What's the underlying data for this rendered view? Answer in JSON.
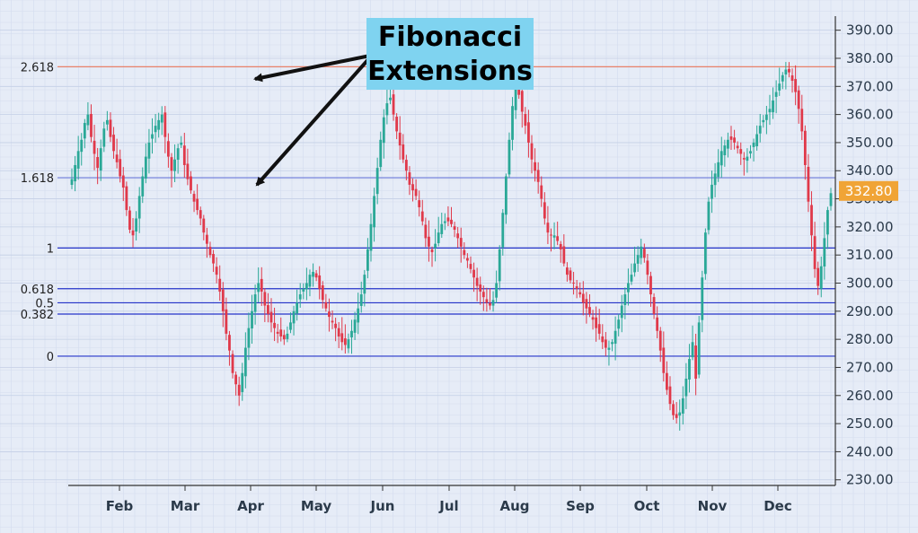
{
  "annotation": {
    "line1": "Fibonacci",
    "line2": "Extensions"
  },
  "chart_data": {
    "type": "candlestick",
    "title": "",
    "xlabel": "",
    "ylabel": "",
    "y_ticks": [
      230,
      240,
      250,
      260,
      270,
      280,
      290,
      300,
      310,
      320,
      330,
      340,
      350,
      360,
      370,
      380,
      390
    ],
    "ylim": [
      228,
      395
    ],
    "x_ticks": [
      "Feb",
      "Mar",
      "Apr",
      "May",
      "Jun",
      "Jul",
      "Aug",
      "Sep",
      "Oct",
      "Nov",
      "Dec"
    ],
    "last_price": "332.80",
    "grid": true,
    "fib_levels": [
      {
        "label": "2.618",
        "value": 377,
        "color": "#e8826a"
      },
      {
        "label": "1.618",
        "value": 337.5,
        "color": "#6b78d8"
      },
      {
        "label": "1",
        "value": 312.5,
        "color": "#2433c8"
      },
      {
        "label": "0.618",
        "value": 298,
        "color": "#2433c8"
      },
      {
        "label": "0.5",
        "value": 293,
        "color": "#2433c8"
      },
      {
        "label": "0.382",
        "value": 289,
        "color": "#2433c8"
      },
      {
        "label": "0",
        "value": 274,
        "color": "#2433c8"
      }
    ],
    "series": [
      {
        "values": [
          337,
          342,
          347,
          351,
          357,
          360,
          352,
          346,
          341,
          348,
          355,
          358,
          352,
          347,
          343,
          338,
          334,
          326,
          319,
          317,
          323,
          331,
          338,
          345,
          350,
          353,
          356,
          358,
          360,
          352,
          345,
          340,
          344,
          348,
          350,
          342,
          337,
          333,
          329,
          326,
          323,
          318,
          314,
          310,
          307,
          303,
          297,
          290,
          282,
          276,
          268,
          264,
          260,
          268,
          277,
          284,
          290,
          296,
          300,
          297,
          292,
          289,
          286,
          284,
          282,
          281,
          280,
          282,
          286,
          290,
          293,
          296,
          298,
          300,
          303,
          304,
          302,
          298,
          294,
          291,
          288,
          286,
          284,
          281,
          279,
          278,
          280,
          283,
          287,
          291,
          296,
          303,
          312,
          321,
          331,
          341,
          351,
          359,
          364,
          366,
          360,
          354,
          349,
          344,
          340,
          335,
          333,
          331,
          327,
          322,
          316,
          313,
          311,
          314,
          318,
          321,
          322,
          322,
          321,
          319,
          316,
          313,
          310,
          308,
          305,
          302,
          299,
          297,
          295,
          293,
          292,
          294,
          300,
          312,
          325,
          338,
          351,
          363,
          371,
          367,
          361,
          356,
          350,
          344,
          340,
          336,
          330,
          323,
          318,
          317,
          317,
          315,
          312,
          307,
          303,
          301,
          300,
          298,
          296,
          293,
          291,
          289,
          287,
          284,
          282,
          279,
          277,
          277,
          279,
          283,
          287,
          292,
          296,
          300,
          303,
          307,
          310,
          313,
          309,
          303,
          296,
          289,
          283,
          276,
          268,
          262,
          257,
          253,
          252,
          254,
          259,
          266,
          273,
          279,
          266,
          286,
          302,
          318,
          329,
          335,
          339,
          343,
          347,
          349,
          351,
          351,
          350,
          348,
          346,
          344,
          345,
          347,
          350,
          353,
          356,
          358,
          360,
          362,
          365,
          368,
          371,
          374,
          376,
          375,
          372,
          368,
          362,
          354,
          342,
          329,
          317,
          305,
          299,
          306,
          316,
          326,
          332
        ]
      }
    ]
  }
}
